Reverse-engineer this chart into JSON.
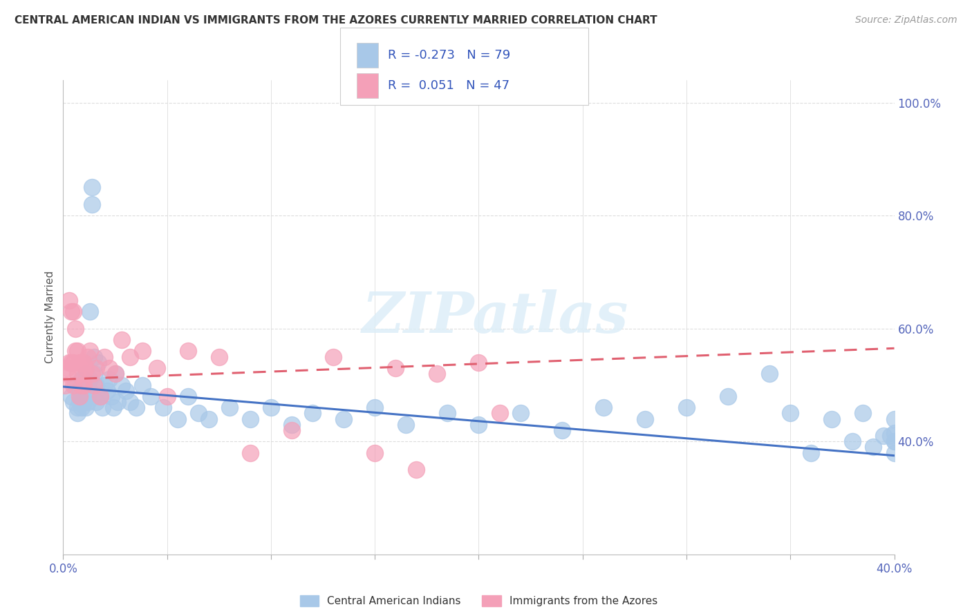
{
  "title": "CENTRAL AMERICAN INDIAN VS IMMIGRANTS FROM THE AZORES CURRENTLY MARRIED CORRELATION CHART",
  "source": "Source: ZipAtlas.com",
  "ylabel": "Currently Married",
  "legend_label1": "Central American Indians",
  "legend_label2": "Immigrants from the Azores",
  "R1": -0.273,
  "N1": 79,
  "R2": 0.051,
  "N2": 47,
  "blue_color": "#a8c8e8",
  "pink_color": "#f4a0b8",
  "blue_edge": "#a8c8e8",
  "pink_edge": "#f4a0b8",
  "blue_line_color": "#4472c4",
  "pink_line_color": "#e06070",
  "xlim": [
    0.0,
    0.4
  ],
  "ylim": [
    0.2,
    1.04
  ],
  "blue_x": [
    0.004,
    0.005,
    0.006,
    0.007,
    0.007,
    0.008,
    0.008,
    0.009,
    0.009,
    0.009,
    0.01,
    0.01,
    0.01,
    0.011,
    0.011,
    0.011,
    0.012,
    0.012,
    0.013,
    0.013,
    0.013,
    0.014,
    0.014,
    0.015,
    0.015,
    0.015,
    0.016,
    0.016,
    0.017,
    0.018,
    0.019,
    0.02,
    0.021,
    0.022,
    0.023,
    0.024,
    0.025,
    0.026,
    0.028,
    0.03,
    0.032,
    0.035,
    0.038,
    0.042,
    0.048,
    0.055,
    0.06,
    0.065,
    0.07,
    0.08,
    0.09,
    0.1,
    0.11,
    0.12,
    0.135,
    0.15,
    0.165,
    0.185,
    0.2,
    0.22,
    0.24,
    0.26,
    0.28,
    0.3,
    0.32,
    0.34,
    0.35,
    0.36,
    0.37,
    0.38,
    0.385,
    0.39,
    0.395,
    0.398,
    0.4,
    0.4,
    0.4,
    0.4,
    0.4
  ],
  "blue_y": [
    0.48,
    0.47,
    0.5,
    0.45,
    0.46,
    0.49,
    0.47,
    0.48,
    0.51,
    0.46,
    0.49,
    0.5,
    0.47,
    0.52,
    0.48,
    0.46,
    0.5,
    0.47,
    0.51,
    0.49,
    0.63,
    0.85,
    0.82,
    0.52,
    0.48,
    0.55,
    0.47,
    0.5,
    0.54,
    0.48,
    0.46,
    0.5,
    0.49,
    0.51,
    0.48,
    0.46,
    0.52,
    0.47,
    0.5,
    0.49,
    0.47,
    0.46,
    0.5,
    0.48,
    0.46,
    0.44,
    0.48,
    0.45,
    0.44,
    0.46,
    0.44,
    0.46,
    0.43,
    0.45,
    0.44,
    0.46,
    0.43,
    0.45,
    0.43,
    0.45,
    0.42,
    0.46,
    0.44,
    0.46,
    0.48,
    0.52,
    0.45,
    0.38,
    0.44,
    0.4,
    0.45,
    0.39,
    0.41,
    0.41,
    0.38,
    0.4,
    0.4,
    0.415,
    0.44
  ],
  "pink_x": [
    0.001,
    0.002,
    0.002,
    0.003,
    0.003,
    0.004,
    0.004,
    0.005,
    0.005,
    0.005,
    0.006,
    0.006,
    0.007,
    0.007,
    0.008,
    0.008,
    0.009,
    0.009,
    0.01,
    0.01,
    0.01,
    0.011,
    0.012,
    0.013,
    0.014,
    0.015,
    0.016,
    0.018,
    0.02,
    0.022,
    0.025,
    0.028,
    0.032,
    0.038,
    0.045,
    0.05,
    0.06,
    0.075,
    0.09,
    0.11,
    0.13,
    0.15,
    0.16,
    0.17,
    0.18,
    0.2,
    0.21
  ],
  "pink_y": [
    0.5,
    0.52,
    0.53,
    0.54,
    0.65,
    0.54,
    0.63,
    0.54,
    0.63,
    0.5,
    0.56,
    0.6,
    0.52,
    0.56,
    0.54,
    0.48,
    0.5,
    0.54,
    0.54,
    0.52,
    0.5,
    0.53,
    0.55,
    0.56,
    0.52,
    0.5,
    0.53,
    0.48,
    0.55,
    0.53,
    0.52,
    0.58,
    0.55,
    0.56,
    0.53,
    0.48,
    0.56,
    0.55,
    0.38,
    0.42,
    0.55,
    0.38,
    0.53,
    0.35,
    0.52,
    0.54,
    0.45
  ],
  "blue_trend_x": [
    0.0,
    0.4
  ],
  "blue_trend_y": [
    0.497,
    0.375
  ],
  "pink_trend_x": [
    0.0,
    0.4
  ],
  "pink_trend_y": [
    0.51,
    0.565
  ],
  "watermark": "ZIPatlas",
  "background_color": "#ffffff",
  "grid_color": "#dddddd",
  "tick_color": "#5566bb",
  "text_color": "#3355bb",
  "title_color": "#333333",
  "source_color": "#999999"
}
